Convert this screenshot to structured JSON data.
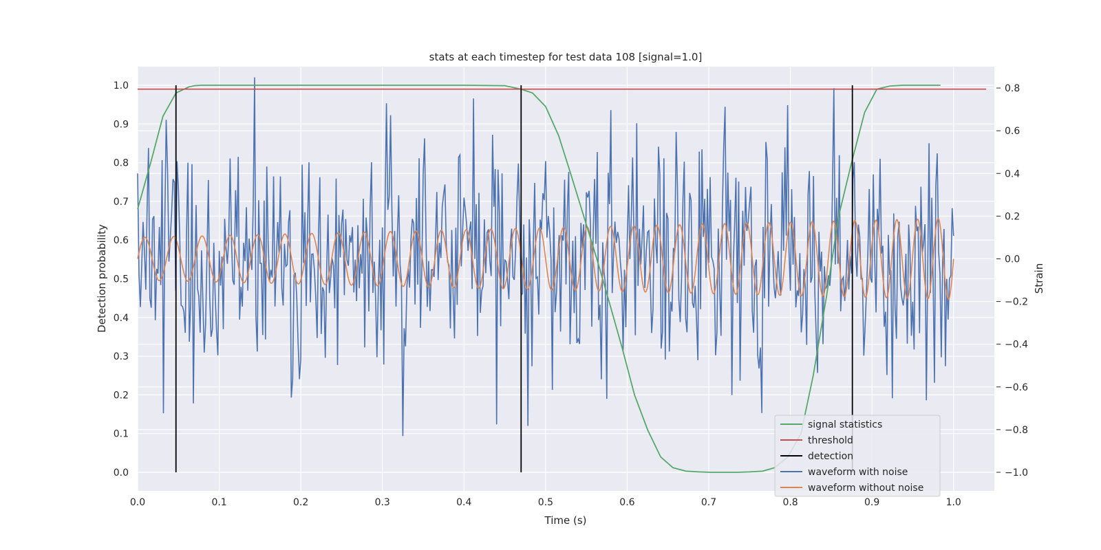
{
  "chart_data": {
    "type": "line",
    "title": "stats at each timestep for test data 108 [signal=1.0]",
    "xlabel": "Time (s)",
    "ylabel": "Detection probability",
    "y2label": "Strain",
    "xlim": [
      0.0,
      1.05
    ],
    "ylim": [
      -0.048,
      1.048
    ],
    "y2lim": [
      -1.087,
      0.9
    ],
    "xticks": [
      "0.0",
      "0.1",
      "0.2",
      "0.3",
      "0.4",
      "0.5",
      "0.6",
      "0.7",
      "0.8",
      "0.9",
      "1.0"
    ],
    "yticks": [
      "0.0",
      "0.1",
      "0.2",
      "0.3",
      "0.4",
      "0.5",
      "0.6",
      "0.7",
      "0.8",
      "0.9",
      "1.0"
    ],
    "y2ticks": [
      "−1.0",
      "−0.8",
      "−0.6",
      "−0.4",
      "−0.2",
      "0.0",
      "0.2",
      "0.4",
      "0.6",
      "0.8"
    ],
    "grid": true,
    "legend_position": "lower-right",
    "colors": {
      "signal_statistics": "#55a868",
      "threshold": "#c44e52",
      "detection": "#000000",
      "waveform_with_noise": "#4c72b0",
      "waveform_without_noise": "#dd8452",
      "plot_background": "#eaeaf2",
      "grid": "#ffffff"
    },
    "series": [
      {
        "name": "signal statistics",
        "axis": "left",
        "x": [
          0.0,
          0.016,
          0.031,
          0.047,
          0.063,
          0.07,
          0.078,
          0.094,
          0.2,
          0.3,
          0.4,
          0.45,
          0.47,
          0.484,
          0.5,
          0.516,
          0.531,
          0.547,
          0.563,
          0.578,
          0.594,
          0.609,
          0.625,
          0.641,
          0.656,
          0.672,
          0.688,
          0.703,
          0.719,
          0.734,
          0.75,
          0.766,
          0.781,
          0.797,
          0.813,
          0.828,
          0.844,
          0.859,
          0.875,
          0.891,
          0.906,
          0.922,
          0.938,
          0.95,
          0.984
        ],
        "y": [
          0.68,
          0.8,
          0.92,
          0.98,
          0.996,
          0.999,
          1.0,
          1.0,
          1.0,
          1.0,
          1.0,
          0.999,
          0.99,
          0.98,
          0.945,
          0.87,
          0.77,
          0.66,
          0.55,
          0.44,
          0.32,
          0.2,
          0.11,
          0.04,
          0.012,
          0.003,
          0.001,
          0.0,
          0.0,
          0.0,
          0.001,
          0.003,
          0.012,
          0.04,
          0.1,
          0.25,
          0.45,
          0.66,
          0.8,
          0.93,
          0.99,
          0.998,
          1.0,
          1.0,
          1.0
        ]
      },
      {
        "name": "threshold",
        "axis": "left",
        "x": [
          0.0,
          1.04
        ],
        "y": [
          0.99,
          0.99
        ]
      },
      {
        "name": "detection",
        "axis": "left",
        "x": [
          0.047,
          0.47,
          0.876
        ],
        "y": [
          1.0,
          1.0,
          1.0
        ]
      },
      {
        "name": "waveform with noise",
        "axis": "right",
        "x_range": [
          0.0,
          1.0
        ],
        "samples": 600,
        "std": 0.28,
        "min": -0.99,
        "max": 0.85
      },
      {
        "name": "waveform without noise",
        "axis": "right",
        "x_range": [
          0.0,
          1.0
        ],
        "frequency_start": 28,
        "frequency_end": 40,
        "amplitude_start": 0.1,
        "amplitude_end": 0.19
      }
    ]
  }
}
